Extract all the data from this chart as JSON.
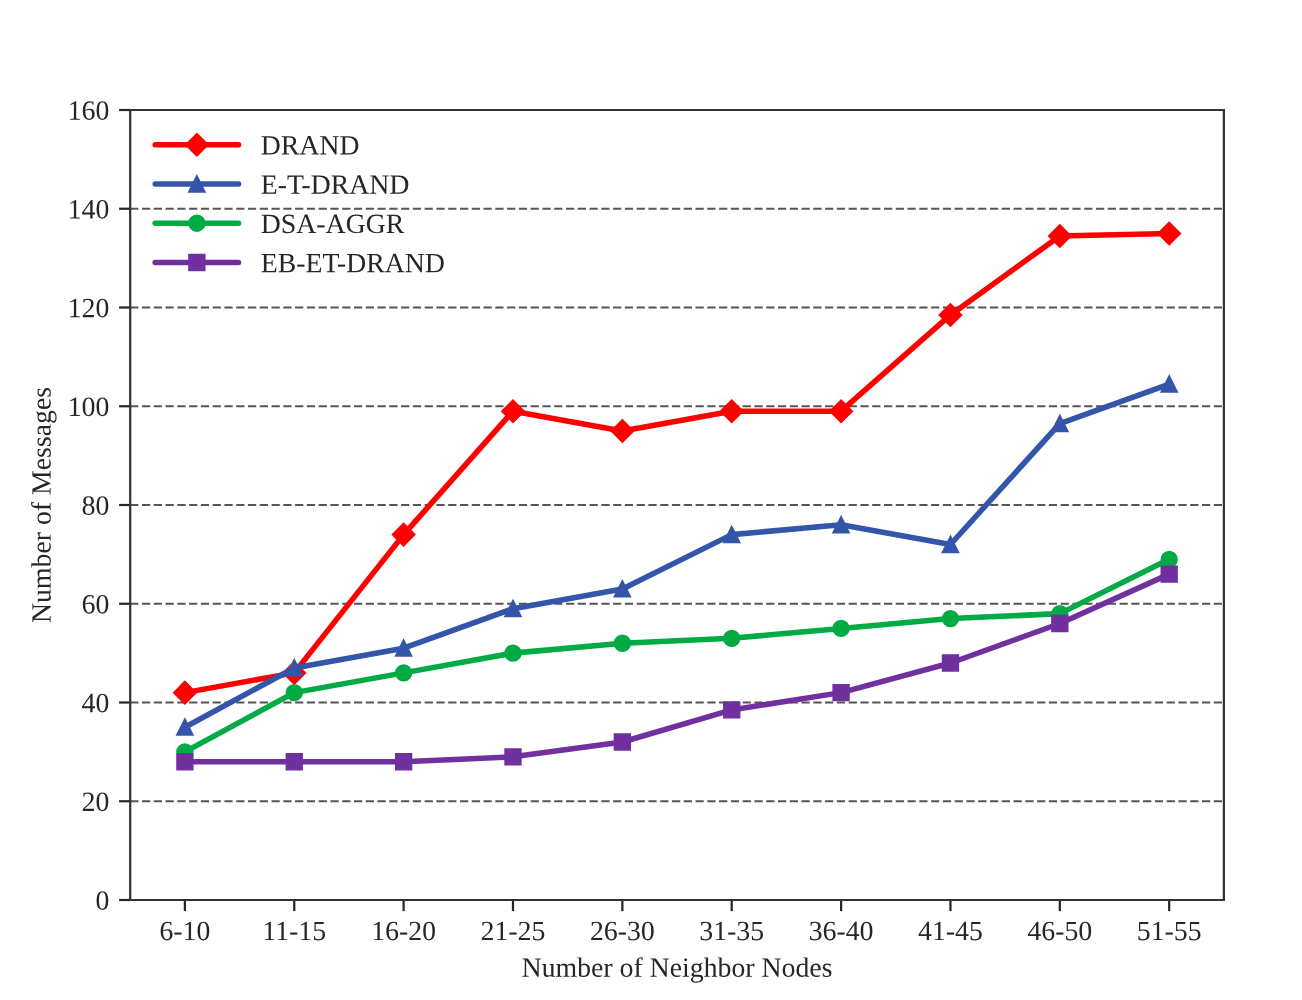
{
  "chart_data": {
    "type": "line",
    "xlabel": "Number of Neighbor Nodes",
    "ylabel": "Number of Messages",
    "categories": [
      "6-10",
      "11-15",
      "16-20",
      "21-25",
      "26-30",
      "31-35",
      "36-40",
      "41-45",
      "46-50",
      "51-55"
    ],
    "ylim": [
      0,
      160
    ],
    "yticks": [
      0,
      20,
      40,
      60,
      80,
      100,
      120,
      140,
      160
    ],
    "grid": "y",
    "legend": "top left",
    "line_style": "solid",
    "series": [
      {
        "name": "DRAND",
        "color": "#ff0000",
        "marker": "diamond",
        "values": [
          42,
          46,
          74,
          99,
          95,
          99,
          99,
          118.5,
          134.5,
          135
        ]
      },
      {
        "name": "E-T-DRAND",
        "color": "#3355aa",
        "marker": "triangle",
        "values": [
          35,
          47,
          51,
          59,
          63,
          74,
          76,
          72,
          96.5,
          104.5
        ]
      },
      {
        "name": "DSA-AGGR",
        "color": "#00aa44",
        "marker": "circle",
        "values": [
          30,
          42,
          46,
          50,
          52,
          53,
          55,
          57,
          58,
          69
        ]
      },
      {
        "name": "EB-ET-DRAND",
        "color": "#7030a0",
        "marker": "square",
        "values": [
          28,
          28,
          28,
          29,
          32,
          38.5,
          42,
          48,
          56,
          66
        ]
      }
    ]
  }
}
